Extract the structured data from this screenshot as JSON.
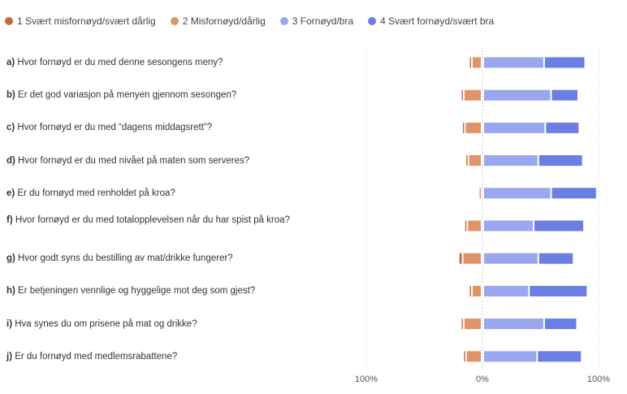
{
  "chart_data": {
    "type": "bar",
    "subtype": "diverging-stacked-horizontal",
    "legend": {
      "position": "top",
      "entries": [
        {
          "name": "1 Svært misfornøyd/svært dårlig",
          "color": "#c8693a"
        },
        {
          "name": "2 Misfornøyd/dårlig",
          "color": "#e0946a"
        },
        {
          "name": "3 Fornøyd/bra",
          "color": "#9aa7ee"
        },
        {
          "name": "4  Svært fornøyd/svært bra",
          "color": "#6a7ee3"
        }
      ]
    },
    "categories": [
      {
        "letter": "a)",
        "text": "Hvor fornøyd er du med denne sesongens meny?"
      },
      {
        "letter": "b)",
        "text": "Er det god variasjon på menyen gjennom sesongen?"
      },
      {
        "letter": "c)",
        "text": "Hvor fornøyd er du med “dagens middagsrett”?"
      },
      {
        "letter": "d)",
        "text": "Hvor fornøyd er du med nivået på maten som serveres?"
      },
      {
        "letter": "e)",
        "text": "Er du fornøyd med renholdet på kroa?"
      },
      {
        "letter": "f)",
        "text": "Hvor fornøyd er du med totalopplevelsen når du har spist på kroa?"
      },
      {
        "letter": "g)",
        "text": "Hvor godt syns du bestilling av mat/drikke fungerer?"
      },
      {
        "letter": "h)",
        "text": "Er betjeningen vennlige og hyggelige mot deg som gjest?"
      },
      {
        "letter": "i)",
        "text": "Hva synes du om prisene på mat og drikke?"
      },
      {
        "letter": "j)",
        "text": "Er du fornøyd med medlemsrabattene?"
      }
    ],
    "series": [
      {
        "name": "1 Svært misfornøyd/svært dårlig",
        "values": [
          1,
          1,
          1,
          1,
          0,
          1,
          2,
          1,
          1,
          1
        ]
      },
      {
        "name": "2 Misfornøyd/dårlig",
        "values": [
          7,
          14,
          13,
          10,
          1,
          11,
          15,
          7,
          14,
          12
        ]
      },
      {
        "name": "3 Fornøyd/bra",
        "values": [
          51,
          57,
          52,
          46,
          57,
          42,
          46,
          38,
          51,
          45
        ]
      },
      {
        "name": "4  Svært fornøyd/svært bra",
        "values": [
          34,
          22,
          28,
          37,
          38,
          42,
          29,
          49,
          27,
          37
        ]
      }
    ],
    "xlim": [
      -100,
      100
    ],
    "xticks": [
      "100%",
      "0%",
      "100%"
    ],
    "grid": true,
    "unit": "%"
  }
}
